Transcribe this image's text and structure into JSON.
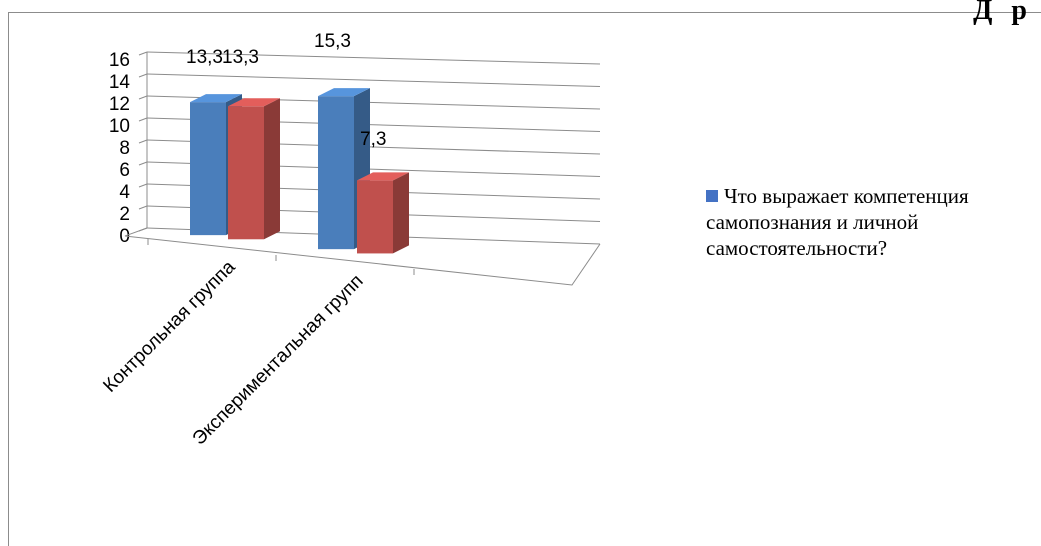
{
  "page": {
    "corner_text": "Д р"
  },
  "chart_data": {
    "type": "bar",
    "style": "3d-clustered-column",
    "categories": [
      "Контрольная группа",
      "Экспериментальная групп"
    ],
    "series": [
      {
        "name": "Что выражает компетенция самопознания и личной самостоятельности?",
        "values": [
          13.3,
          15.3
        ],
        "color": "#4a7ebb"
      },
      {
        "values": [
          13.3,
          7.3
        ],
        "color": "#c0504d"
      }
    ],
    "data_labels": [
      [
        "13,3",
        "15,3"
      ],
      [
        "13,3",
        "7,3"
      ]
    ],
    "ylim": [
      0,
      16
    ],
    "yticks": [
      "0",
      "2",
      "4",
      "6",
      "8",
      "10",
      "12",
      "14",
      "16"
    ],
    "grid": true,
    "legend_position": "right",
    "title": "",
    "xlabel": "",
    "ylabel": ""
  }
}
